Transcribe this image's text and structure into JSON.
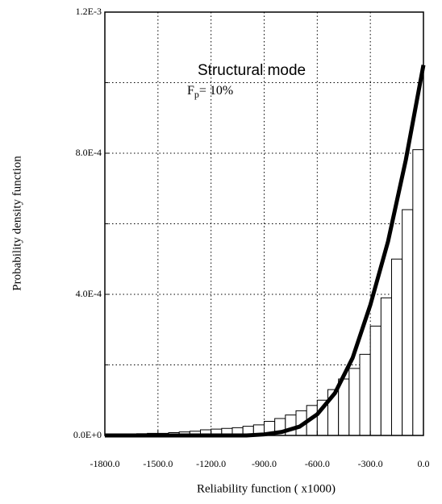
{
  "chart_data": {
    "type": "histogram",
    "xlabel": "Reliability function ( x1000)",
    "ylabel": "Probability density function",
    "annotations": [
      {
        "text": "Structural mode"
      },
      {
        "text": "F",
        "sub": "p",
        "rest": "= 10%"
      }
    ],
    "bins": [
      -1800,
      -1740,
      -1680,
      -1620,
      -1560,
      -1500,
      -1440,
      -1380,
      -1320,
      -1260,
      -1200,
      -1140,
      -1080,
      -1020,
      -960,
      -900,
      -840,
      -780,
      -720,
      -660,
      -600,
      -540,
      -480,
      -420,
      -360,
      -300,
      -240,
      -180,
      -120,
      -60,
      0
    ],
    "values": [
      2e-06,
      3e-06,
      4e-06,
      5e-06,
      6e-06,
      6e-06,
      8e-06,
      1e-05,
      1.2e-05,
      1.6e-05,
      1.8e-05,
      2e-05,
      2.2e-05,
      2.6e-05,
      3e-05,
      4e-05,
      4.8e-05,
      5.8e-05,
      7e-05,
      8.5e-05,
      0.0001,
      0.00013,
      0.00016,
      0.00019,
      0.00023,
      0.00031,
      0.00039,
      0.0005,
      0.00064,
      0.00081
    ],
    "curve": {
      "x": [
        -1800,
        -1000,
        -900,
        -800,
        -700,
        -600,
        -500,
        -400,
        -300,
        -200,
        -100,
        0
      ],
      "values": [
        0,
        0,
        3e-06,
        1e-05,
        2.5e-05,
        6e-05,
        0.00012,
        0.00022,
        0.00037,
        0.00055,
        0.00078,
        0.00105
      ]
    },
    "xlim": [
      -1800,
      0
    ],
    "ylim": [
      0,
      0.0012
    ],
    "xticks": [
      {
        "value": -1800,
        "label": "-1800.0"
      },
      {
        "value": -1500,
        "label": "-1500.0"
      },
      {
        "value": -1200,
        "label": "-1200.0"
      },
      {
        "value": -900,
        "label": "-900.0"
      },
      {
        "value": -600,
        "label": "-600.0"
      },
      {
        "value": -300,
        "label": "-300.0"
      },
      {
        "value": 0,
        "label": "0.0"
      }
    ],
    "yticks": [
      {
        "value": 0,
        "label": "0.0E+0"
      },
      {
        "value": 0.0004,
        "label": "4.0E-4"
      },
      {
        "value": 0.0008,
        "label": "8.0E-4"
      },
      {
        "value": 0.0012,
        "label": "1.2E-3"
      }
    ],
    "yminor": [
      0.0002,
      0.0006,
      0.001
    ],
    "grid": true
  }
}
